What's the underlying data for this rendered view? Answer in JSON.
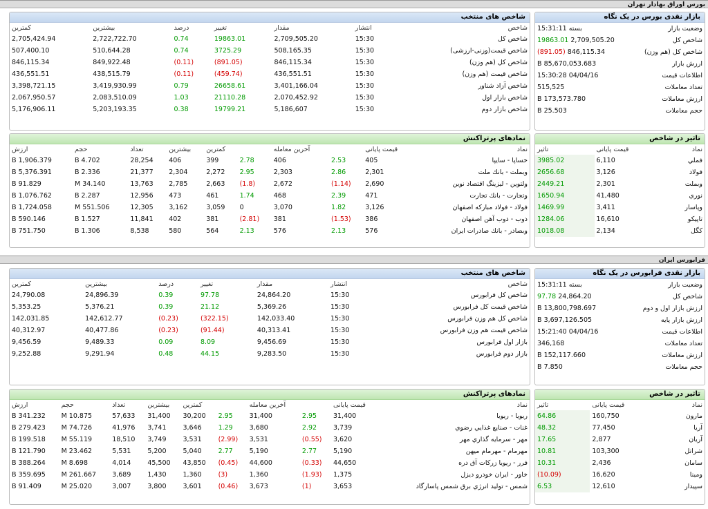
{
  "bourse": {
    "title": "بورس اوراق بهادار تهران",
    "overview": {
      "title": "بازار نقدی بورس در یک نگاه",
      "rows": [
        {
          "label": "وضعیت بازار",
          "value": "بسته 15:31:11"
        },
        {
          "label": "شاخص کل",
          "value": "2,709,505.20",
          "change": "19863.01",
          "dir": "g"
        },
        {
          "label": "شاخص کل (هم وزن)",
          "value": "846,115.34",
          "change": "(891.05)",
          "dir": "r"
        },
        {
          "label": "ارزش بازار",
          "value": "85,670,053.683 B"
        },
        {
          "label": "اطلاعات قیمت",
          "value": "04/04/16 15:30:28"
        },
        {
          "label": "تعداد معاملات",
          "value": "515,525"
        },
        {
          "label": "ارزش معاملات",
          "value": "173,573.780 B"
        },
        {
          "label": "حجم معاملات",
          "value": "25.503 B"
        }
      ]
    },
    "indices": {
      "title": "شاخص های منتخب",
      "headers": [
        "شاخص",
        "انتشار",
        "مقدار",
        "تغییر",
        "درصد",
        "بیشترین",
        "کمترین"
      ],
      "rows": [
        [
          "شاخص کل",
          "15:30",
          "2,709,505.20",
          "19863.01",
          "0.74",
          "2,722,722.70",
          "2,705,424.94",
          "g"
        ],
        [
          "شاخص قیمت(وزنی-ارزشی)",
          "15:30",
          "508,165.35",
          "3725.29",
          "0.74",
          "510,644.28",
          "507,400.10",
          "g"
        ],
        [
          "شاخص کل (هم وزن)",
          "15:30",
          "846,115.34",
          "(891.05)",
          "(0.11)",
          "849,922.48",
          "846,115.34",
          "r"
        ],
        [
          "شاخص قیمت (هم وزن)",
          "15:30",
          "436,551.51",
          "(459.74)",
          "(0.11)",
          "438,515.79",
          "436,551.51",
          "r"
        ],
        [
          "شاخص آزاد شناور",
          "15:30",
          "3,401,166.04",
          "26658.61",
          "0.79",
          "3,419,930.99",
          "3,398,721.15",
          "g"
        ],
        [
          "شاخص بازار اول",
          "15:30",
          "2,070,452.92",
          "21110.28",
          "1.03",
          "2,083,510.09",
          "2,067,950.57",
          "g"
        ],
        [
          "شاخص بازار دوم",
          "15:30",
          "5,186,607",
          "19799.21",
          "0.38",
          "5,203,193.35",
          "5,176,906.11",
          "g"
        ]
      ]
    },
    "impact": {
      "title": "تاثیر در شاخص",
      "headers": [
        "نماد",
        "قیمت پایانی",
        "تاثیر"
      ],
      "rows": [
        [
          "فملي",
          "6,110",
          "3985.02",
          "g"
        ],
        [
          "فولاد",
          "3,126",
          "2656.68",
          "g"
        ],
        [
          "وبملت",
          "2,301",
          "2449.21",
          "g"
        ],
        [
          "نوري",
          "41,480",
          "1650.94",
          "g"
        ],
        [
          "وپاسار",
          "3,411",
          "1469.99",
          "g"
        ],
        [
          "تاپيكو",
          "16,610",
          "1284.06",
          "g"
        ],
        [
          "كگل",
          "2,134",
          "1018.08",
          "g"
        ]
      ]
    },
    "symbols": {
      "title": "نمادهای پرتراکنش",
      "headers": [
        "نماد",
        "قیمت پایانی",
        "",
        "آخرین معامله",
        "",
        "کمترین",
        "بیشترین",
        "تعداد",
        "حجم",
        "ارزش"
      ],
      "rows": [
        [
          "خساپا - سايپا",
          "405",
          "2.53",
          "g",
          "406",
          "2.78",
          "g",
          "399",
          "406",
          "28,254",
          "4.702 B",
          "1,906.379 B"
        ],
        [
          "وبملت - بانك ملت",
          "2,301",
          "2.86",
          "g",
          "2,303",
          "2.95",
          "g",
          "2,272",
          "2,304",
          "21,377",
          "2.336 B",
          "5,376.391 B"
        ],
        [
          "ولتوين - ليزينگ اقتصاد نوين",
          "2,690",
          "(1.14)",
          "r",
          "2,672",
          "(1.8)",
          "r",
          "2,663",
          "2,785",
          "13,763",
          "34.140 M",
          "91.829 B"
        ],
        [
          "وتجارت - بانك تجارت",
          "471",
          "2.39",
          "g",
          "468",
          "1.74",
          "g",
          "461",
          "473",
          "12,956",
          "2.287 B",
          "1,076.762 B"
        ],
        [
          "فولاد - فولاد مباركه اصفهان",
          "3,126",
          "1.82",
          "g",
          "3,070",
          "0",
          "",
          "3,059",
          "3,162",
          "12,305",
          "551.506 M",
          "1,724.058 B"
        ],
        [
          "ذوب - ذوب آهن اصفهان",
          "386",
          "(1.53)",
          "r",
          "381",
          "(2.81)",
          "r",
          "381",
          "402",
          "11,841",
          "1.527 B",
          "590.146 B"
        ],
        [
          "وبصادر - بانك صادرات ايران",
          "576",
          "2.13",
          "g",
          "576",
          "2.13",
          "g",
          "564",
          "580",
          "8,538",
          "1.306 B",
          "751.750 B"
        ]
      ]
    }
  },
  "farabourse": {
    "title": "فرابورس ایران",
    "overview": {
      "title": "بازار نقدی فرابورس در یک نگاه",
      "rows": [
        {
          "label": "وضعیت بازار",
          "value": "بسته 15:31:11"
        },
        {
          "label": "شاخص کل",
          "value": "24,864.20",
          "change": "97.78",
          "dir": "g"
        },
        {
          "label": "ارزش بازار اول و دوم",
          "value": "13,800,798.697 B"
        },
        {
          "label": "ارزش بازار پایه",
          "value": "3,697,126.505 B"
        },
        {
          "label": "اطلاعات قیمت",
          "value": "04/04/16 15:21:40"
        },
        {
          "label": "تعداد معاملات",
          "value": "346,168"
        },
        {
          "label": "ارزش معاملات",
          "value": "152,117.660 B"
        },
        {
          "label": "حجم معاملات",
          "value": "7.850 B"
        }
      ]
    },
    "indices": {
      "title": "شاخص های منتخب",
      "headers": [
        "شاخص",
        "انتشار",
        "مقدار",
        "تغییر",
        "درصد",
        "بیشترین",
        "کمترین"
      ],
      "rows": [
        [
          "شاخص کل فرابورس",
          "15:30",
          "24,864.20",
          "97.78",
          "0.39",
          "24,896.39",
          "24,790.08",
          "g"
        ],
        [
          "شاخص قیمت کل فرابورس",
          "15:30",
          "5,369.26",
          "21.12",
          "0.39",
          "5,376.21",
          "5,353.25",
          "g"
        ],
        [
          "شاخص کل هم وزن فرابورس",
          "15:30",
          "142,033.40",
          "(322.15)",
          "(0.23)",
          "142,612.77",
          "142,031.85",
          "r"
        ],
        [
          "شاخص قیمت هم وزن فرابورس",
          "15:30",
          "40,313.41",
          "(91.44)",
          "(0.23)",
          "40,477.86",
          "40,312.97",
          "r"
        ],
        [
          "بازار اول فرابورس",
          "15:30",
          "9,456.69",
          "8.09",
          "0.09",
          "9,489.33",
          "9,456.59",
          "g"
        ],
        [
          "بازار دوم فرابورس",
          "15:30",
          "9,283.50",
          "44.15",
          "0.48",
          "9,291.94",
          "9,252.88",
          "g"
        ]
      ]
    },
    "impact": {
      "title": "تاثیر در شاخص",
      "headers": [
        "نماد",
        "قیمت پایانی",
        "تاثیر"
      ],
      "rows": [
        [
          "مارون",
          "160,750",
          "64.86",
          "g"
        ],
        [
          "آريا",
          "77,450",
          "48.32",
          "g"
        ],
        [
          "آريان",
          "2,877",
          "17.65",
          "g"
        ],
        [
          "شراتل",
          "103,300",
          "10.81",
          "g"
        ],
        [
          "سامان",
          "2,436",
          "10.31",
          "g"
        ],
        [
          "ومينا",
          "16,620",
          "(10.09)",
          "r"
        ],
        [
          "سپيدار",
          "12,610",
          "6.53",
          "g"
        ]
      ]
    },
    "symbols": {
      "title": "نمادهای پرتراکنش",
      "headers": [
        "نماد",
        "قیمت پایانی",
        "",
        "آخرین معامله",
        "",
        "کمترین",
        "بیشترین",
        "تعداد",
        "حجم",
        "ارزش"
      ],
      "rows": [
        [
          "ريويا - ريويا",
          "31,400",
          "2.95",
          "g",
          "31,400",
          "2.95",
          "g",
          "30,200",
          "31,400",
          "57,633",
          "10.875 M",
          "341.232 B"
        ],
        [
          "غنات - صنايع غذايي رضوي",
          "3,739",
          "2.92",
          "g",
          "3,680",
          "1.29",
          "g",
          "3,646",
          "3,741",
          "41,976",
          "74.726 M",
          "279.423 B"
        ],
        [
          "مهر - سرمايه گذاري مهر",
          "3,620",
          "(0.55)",
          "r",
          "3,531",
          "(2.99)",
          "r",
          "3,531",
          "3,749",
          "18,510",
          "55.119 M",
          "199.518 B"
        ],
        [
          "مهرمام - مهرمام ميهن",
          "5,190",
          "2.77",
          "g",
          "5,190",
          "2.77",
          "g",
          "5,040",
          "5,200",
          "5,531",
          "23.462 M",
          "121.790 B"
        ],
        [
          "فرر - ريويا زركات آق دره",
          "44,650",
          "(0.33)",
          "r",
          "44,600",
          "(0.45)",
          "r",
          "43,850",
          "45,500",
          "4,014",
          "8.698 M",
          "388.264 B"
        ],
        [
          "خاور - ايران خودرو ديزل",
          "1,375",
          "(1.93)",
          "r",
          "1,360",
          "(3)",
          "r",
          "1,360",
          "1,430",
          "3,689",
          "261.667 M",
          "359.695 B"
        ],
        [
          "شمس - توليد انرژي برق شمس پاسارگاد",
          "3,653",
          "(1)",
          "r",
          "3,673",
          "(0.46)",
          "r",
          "3,601",
          "3,800",
          "3,007",
          "25.020 M",
          "91.409 B"
        ]
      ]
    }
  }
}
